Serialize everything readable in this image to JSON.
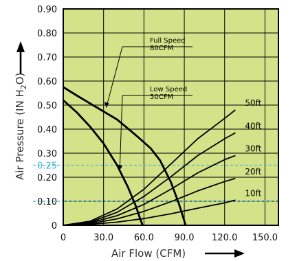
{
  "chart_data": {
    "type": "line",
    "xlabel": "Air Flow (CFM)",
    "ylabel": {
      "main": "Air Pressure (IN H",
      "sub": "2",
      "end": "O)"
    },
    "xlim": [
      0,
      160
    ],
    "ylim": [
      0,
      0.9
    ],
    "x_ticks": [
      "0",
      "30.0",
      "60.0",
      "90.0",
      "120.0",
      "150.0"
    ],
    "y_ticks": [
      "0",
      "0.10",
      "0.20",
      "0.30",
      "0.40",
      "0.50",
      "0.60",
      "0.70",
      "0.80",
      "0.90"
    ],
    "highlight_ticks": [
      "0.10",
      "0.25"
    ],
    "highlight_values": [
      0.1,
      0.25
    ],
    "grid": true,
    "colors": {
      "plot_bg": "#d4e38a",
      "grid": "#000000",
      "reference_line": "#3fb6d6",
      "curve": "#000000"
    },
    "fan_curves": [
      {
        "name": "Full Speed 80CFM",
        "points": [
          [
            0,
            0.575
          ],
          [
            10,
            0.54
          ],
          [
            25,
            0.49
          ],
          [
            40,
            0.44
          ],
          [
            55,
            0.37
          ],
          [
            65,
            0.32
          ],
          [
            72,
            0.27
          ],
          [
            80,
            0.18
          ],
          [
            86,
            0.09
          ],
          [
            91,
            0.0
          ]
        ]
      },
      {
        "name": "Low Speed 50CFM",
        "points": [
          [
            0,
            0.52
          ],
          [
            10,
            0.47
          ],
          [
            20,
            0.41
          ],
          [
            30,
            0.34
          ],
          [
            40,
            0.25
          ],
          [
            48,
            0.16
          ],
          [
            54,
            0.08
          ],
          [
            57,
            0.03
          ],
          [
            59,
            0.0
          ]
        ]
      }
    ],
    "system_curves": [
      {
        "name": "10ft",
        "points": [
          [
            0,
            0
          ],
          [
            20,
            0.004
          ],
          [
            40,
            0.013
          ],
          [
            60,
            0.028
          ],
          [
            80,
            0.048
          ],
          [
            100,
            0.071
          ],
          [
            120,
            0.093
          ],
          [
            128,
            0.105
          ]
        ]
      },
      {
        "name": "20ft",
        "points": [
          [
            0,
            0
          ],
          [
            20,
            0.007
          ],
          [
            40,
            0.027
          ],
          [
            60,
            0.058
          ],
          [
            80,
            0.098
          ],
          [
            100,
            0.143
          ],
          [
            120,
            0.182
          ],
          [
            128,
            0.195
          ]
        ]
      },
      {
        "name": "30ft",
        "points": [
          [
            0,
            0
          ],
          [
            20,
            0.01
          ],
          [
            40,
            0.04
          ],
          [
            60,
            0.087
          ],
          [
            80,
            0.15
          ],
          [
            100,
            0.218
          ],
          [
            120,
            0.273
          ],
          [
            128,
            0.29
          ]
        ]
      },
      {
        "name": "40ft",
        "points": [
          [
            0,
            0
          ],
          [
            20,
            0.013
          ],
          [
            40,
            0.054
          ],
          [
            60,
            0.12
          ],
          [
            80,
            0.202
          ],
          [
            100,
            0.29
          ],
          [
            120,
            0.36
          ],
          [
            128,
            0.385
          ]
        ]
      },
      {
        "name": "50ft",
        "points": [
          [
            0,
            0
          ],
          [
            20,
            0.017
          ],
          [
            40,
            0.068
          ],
          [
            60,
            0.15
          ],
          [
            80,
            0.255
          ],
          [
            100,
            0.36
          ],
          [
            120,
            0.445
          ],
          [
            128,
            0.48
          ]
        ]
      }
    ],
    "annotations": [
      {
        "lines": [
          "Full Speed",
          "80CFM"
        ],
        "target": [
          32,
          0.49
        ]
      },
      {
        "lines": [
          "Low Speed",
          "50CFM"
        ],
        "target": [
          42,
          0.23
        ]
      }
    ]
  }
}
